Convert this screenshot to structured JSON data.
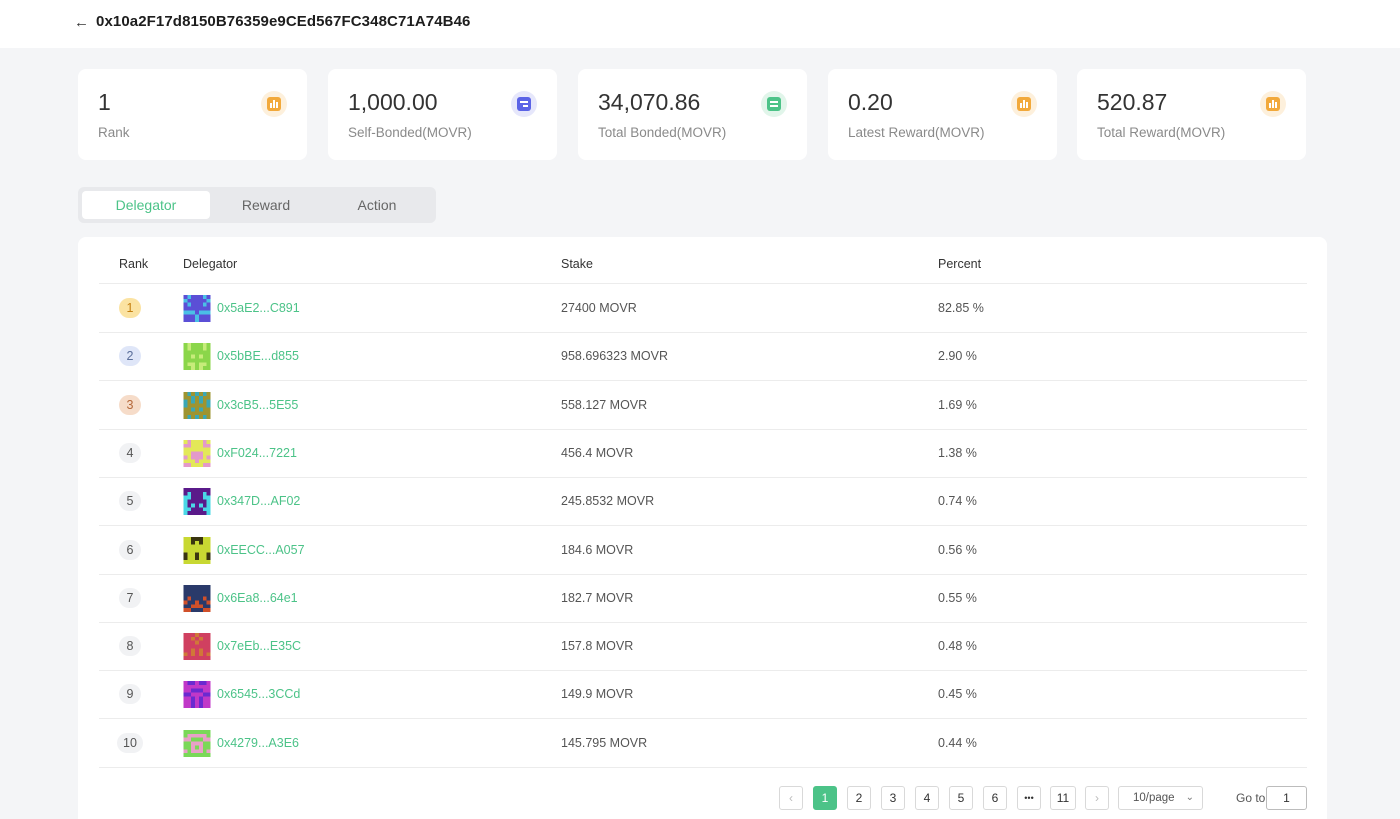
{
  "header": {
    "back_icon": "arrow-left-icon",
    "address": "0x10a2F17d8150B76359e9CEd567FC348C71A74B46"
  },
  "stats": [
    {
      "value": "1",
      "label": "Rank",
      "icon": "bar-chart-icon",
      "color": "#f2a93b"
    },
    {
      "value": "1,000.00",
      "label": "Self-Bonded(MOVR)",
      "icon": "card-icon",
      "color": "#5b63e6"
    },
    {
      "value": "34,070.86",
      "label": "Total Bonded(MOVR)",
      "icon": "document-icon",
      "color": "#4cc388"
    },
    {
      "value": "0.20",
      "label": "Latest Reward(MOVR)",
      "icon": "bar-chart-icon",
      "color": "#f2a93b"
    },
    {
      "value": "520.87",
      "label": "Total Reward(MOVR)",
      "icon": "bar-chart-icon",
      "color": "#f2a93b"
    }
  ],
  "tabs": [
    {
      "label": "Delegator",
      "active": true
    },
    {
      "label": "Reward",
      "active": false
    },
    {
      "label": "Action",
      "active": false
    }
  ],
  "table": {
    "headers": {
      "rank": "Rank",
      "delegator": "Delegator",
      "stake": "Stake",
      "percent": "Percent"
    },
    "rows": [
      {
        "rank": "1",
        "delegator": "0x5aE2...C891",
        "stake": "27400 MOVR",
        "percent": "82.85 %",
        "avatar": [
          "#5b4fd6",
          "#4ac0e6"
        ]
      },
      {
        "rank": "2",
        "delegator": "0x5bBE...d855",
        "stake": "958.696323 MOVR",
        "percent": "2.90 %",
        "avatar": [
          "#8bd64a",
          "#c7ec7a"
        ]
      },
      {
        "rank": "3",
        "delegator": "0x3cB5...5E55",
        "stake": "558.127 MOVR",
        "percent": "1.69 %",
        "avatar": [
          "#9e9430",
          "#3aa7b5"
        ]
      },
      {
        "rank": "4",
        "delegator": "0xF024...7221",
        "stake": "456.4 MOVR",
        "percent": "1.38 %",
        "avatar": [
          "#e3e858",
          "#e39ac9"
        ]
      },
      {
        "rank": "5",
        "delegator": "0x347D...AF02",
        "stake": "245.8532 MOVR",
        "percent": "0.74 %",
        "avatar": [
          "#5a1a8a",
          "#4ad8e6"
        ]
      },
      {
        "rank": "6",
        "delegator": "0xEECC...A057",
        "stake": "184.6 MOVR",
        "percent": "0.56 %",
        "avatar": [
          "#c8d832",
          "#3a3510"
        ]
      },
      {
        "rank": "7",
        "delegator": "0x6Ea8...64e1",
        "stake": "182.7 MOVR",
        "percent": "0.55 %",
        "avatar": [
          "#2a3a6a",
          "#d0502a"
        ]
      },
      {
        "rank": "8",
        "delegator": "0x7eEb...E35C",
        "stake": "157.8 MOVR",
        "percent": "0.48 %",
        "avatar": [
          "#d04060",
          "#d07838"
        ]
      },
      {
        "rank": "9",
        "delegator": "0x6545...3CCd",
        "stake": "149.9 MOVR",
        "percent": "0.45 %",
        "avatar": [
          "#c038c8",
          "#6a2ad0"
        ]
      },
      {
        "rank": "10",
        "delegator": "0x4279...A3E6",
        "stake": "145.795 MOVR",
        "percent": "0.44 %",
        "avatar": [
          "#7ad858",
          "#e8a0c8"
        ]
      }
    ]
  },
  "pagination": {
    "prev": "‹",
    "pages": [
      "1",
      "2",
      "3",
      "4",
      "5",
      "6",
      "•••",
      "11"
    ],
    "next": "›",
    "page_size": "10/page",
    "goto_label": "Go to",
    "goto_value": "1"
  }
}
